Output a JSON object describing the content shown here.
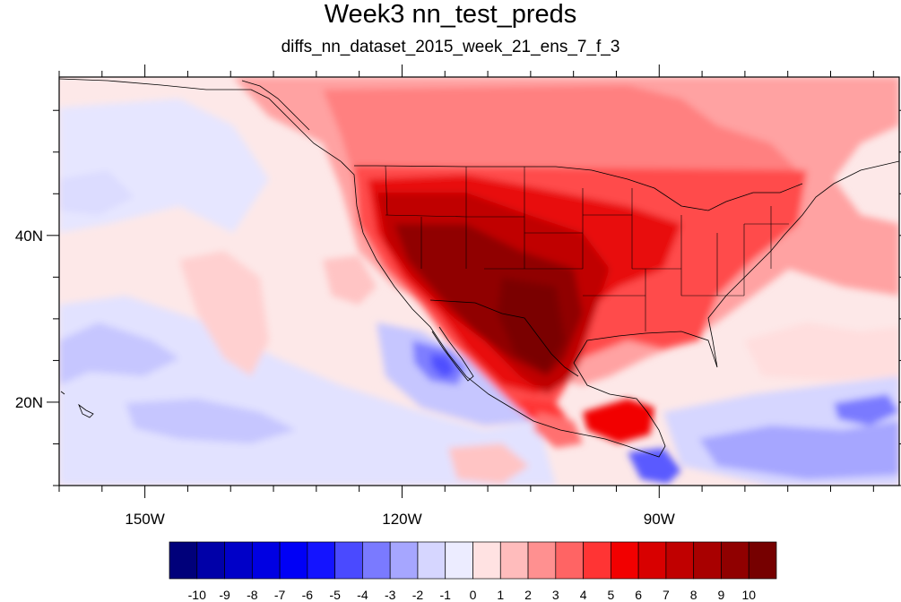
{
  "title": "Week3 nn_test_preds",
  "subtitle": "diffs_nn_dataset_2015_week_21_ens_7_f_3",
  "map": {
    "projection": "cylindrical-equidistant",
    "lon_range": [
      -160,
      -62
    ],
    "lat_range": [
      10,
      59
    ],
    "lon_major_ticks": [
      {
        "value": -150,
        "label": "150W"
      },
      {
        "value": -120,
        "label": "120W"
      },
      {
        "value": -90,
        "label": "90W"
      }
    ],
    "lat_major_ticks": [
      {
        "value": 20,
        "label": "20N"
      },
      {
        "value": 40,
        "label": "40N"
      }
    ],
    "features": [
      "coastlines",
      "us-state-boundaries",
      "canada-mexico-borders"
    ]
  },
  "colorbar": {
    "levels": [
      "-10",
      "-9",
      "-8",
      "-7",
      "-6",
      "-5",
      "-4",
      "-3",
      "-2",
      "-1",
      "0",
      "1",
      "2",
      "3",
      "4",
      "5",
      "6",
      "7",
      "8",
      "9",
      "10"
    ],
    "colors": [
      "#00007a",
      "#0000a8",
      "#0000c8",
      "#0000e2",
      "#0000f6",
      "#1414ff",
      "#4a4aff",
      "#7a7aff",
      "#a6a6ff",
      "#d6d6ff",
      "#ececff",
      "#ffe2e2",
      "#ffbcbc",
      "#ff9090",
      "#ff6464",
      "#ff3434",
      "#f20000",
      "#d80000",
      "#c00000",
      "#a80000",
      "#900000",
      "#760000"
    ]
  },
  "colors": {
    "land_outline": "#000000",
    "background": "#ffffff"
  }
}
